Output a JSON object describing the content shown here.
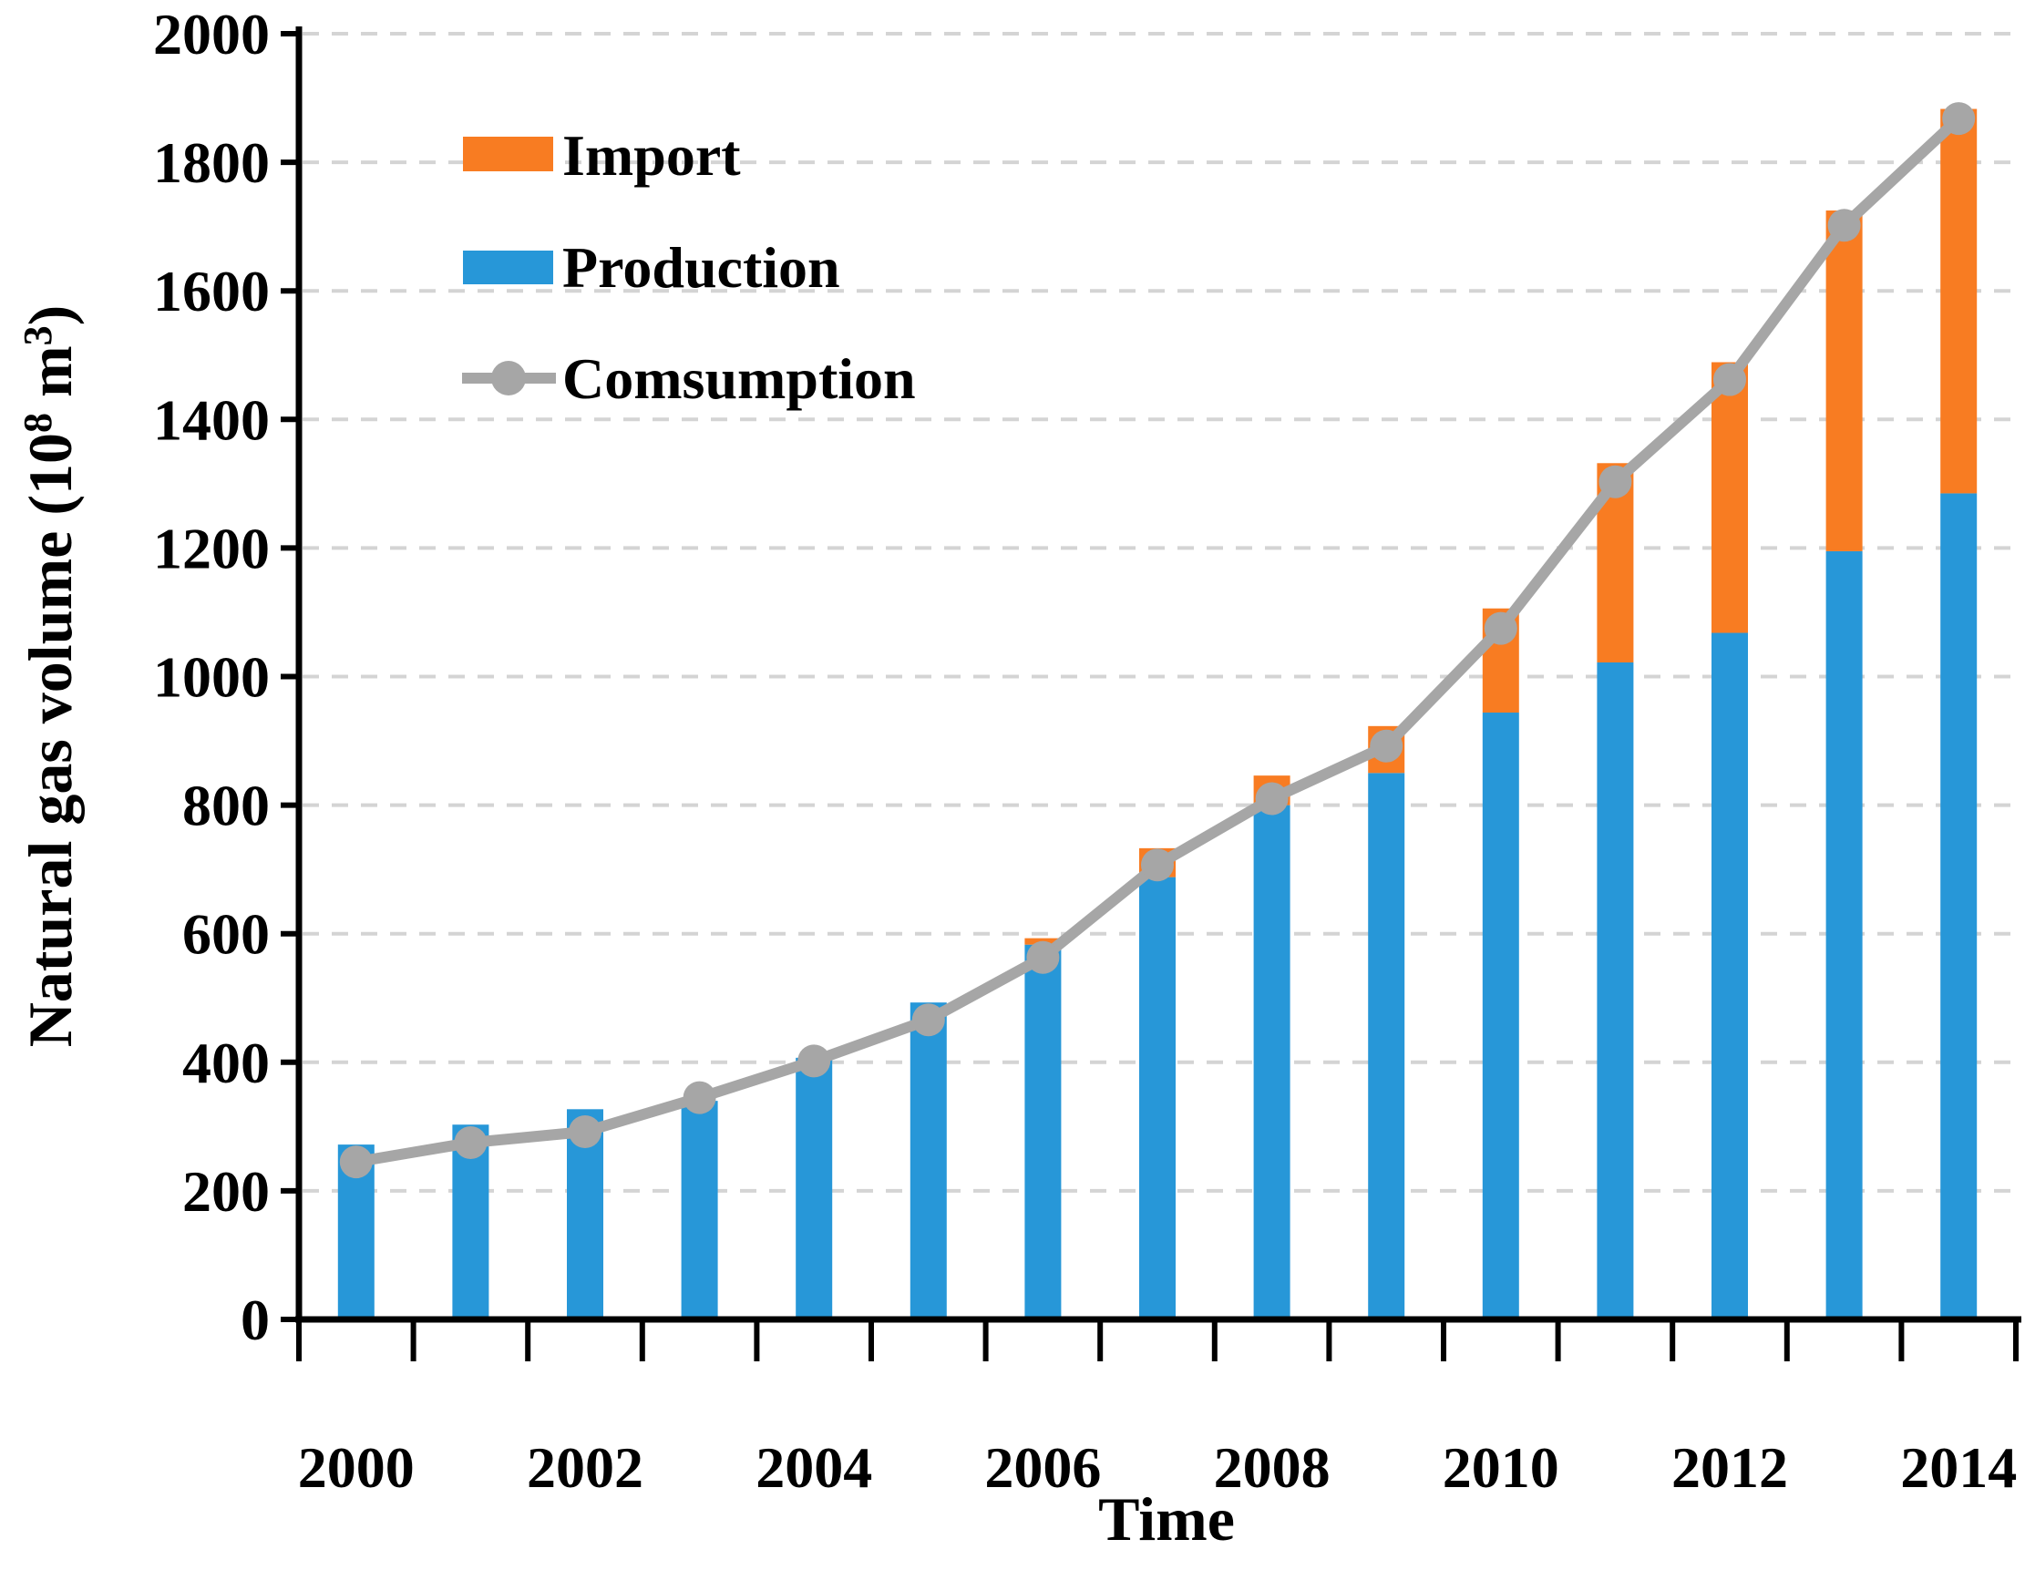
{
  "figure": {
    "background": "#FFFFFF",
    "x_axis_title": "Time",
    "y_axis_title": "Natural gas volume (10⁸ m³)"
  },
  "chart_data": {
    "type": "combo-stacked-bar-line",
    "title": "",
    "xlabel": "Time",
    "ylabel": "Natural gas volume (10⁸ m³)",
    "categories": [
      "2000",
      "2001",
      "2002",
      "2003",
      "2004",
      "2005",
      "2006",
      "2007",
      "2008",
      "2009",
      "2010",
      "2011",
      "2012",
      "2013",
      "2014"
    ],
    "x_tick_labels": [
      "2000",
      "2002",
      "2004",
      "2006",
      "2008",
      "2010",
      "2012",
      "2014"
    ],
    "y_ticks": [
      0,
      200,
      400,
      600,
      800,
      1000,
      1200,
      1400,
      1600,
      1800,
      2000
    ],
    "ylim": [
      0,
      2000
    ],
    "grid": "horizontal-dashed",
    "legend_position": "upper-left-inside",
    "series": [
      {
        "name": "Import",
        "type": "bar",
        "stack": "volume",
        "stack_order": "top",
        "color": "#F87C22",
        "values": [
          0,
          0,
          0,
          0,
          0,
          0,
          10,
          45,
          46,
          73,
          162,
          310,
          421,
          530,
          598
        ]
      },
      {
        "name": "Production",
        "type": "bar",
        "stack": "volume",
        "stack_order": "bottom",
        "color": "#2797D8",
        "values": [
          272,
          303,
          327,
          340,
          407,
          493,
          583,
          688,
          800,
          850,
          944,
          1022,
          1068,
          1195,
          1285
        ]
      },
      {
        "name": "Comsumption",
        "type": "line",
        "marker": "circle",
        "color": "#A6A6A6",
        "values": [
          245,
          275,
          292,
          345,
          402,
          466,
          563,
          707,
          810,
          892,
          1075,
          1303,
          1462,
          1702,
          1868
        ]
      }
    ]
  },
  "colors": {
    "import_bar": "#F87C22",
    "production_bar": "#2797D8",
    "consumption_line": "#A6A6A6",
    "gridline": "#D4D4D4",
    "axis": "#000000",
    "text": "#000000"
  }
}
